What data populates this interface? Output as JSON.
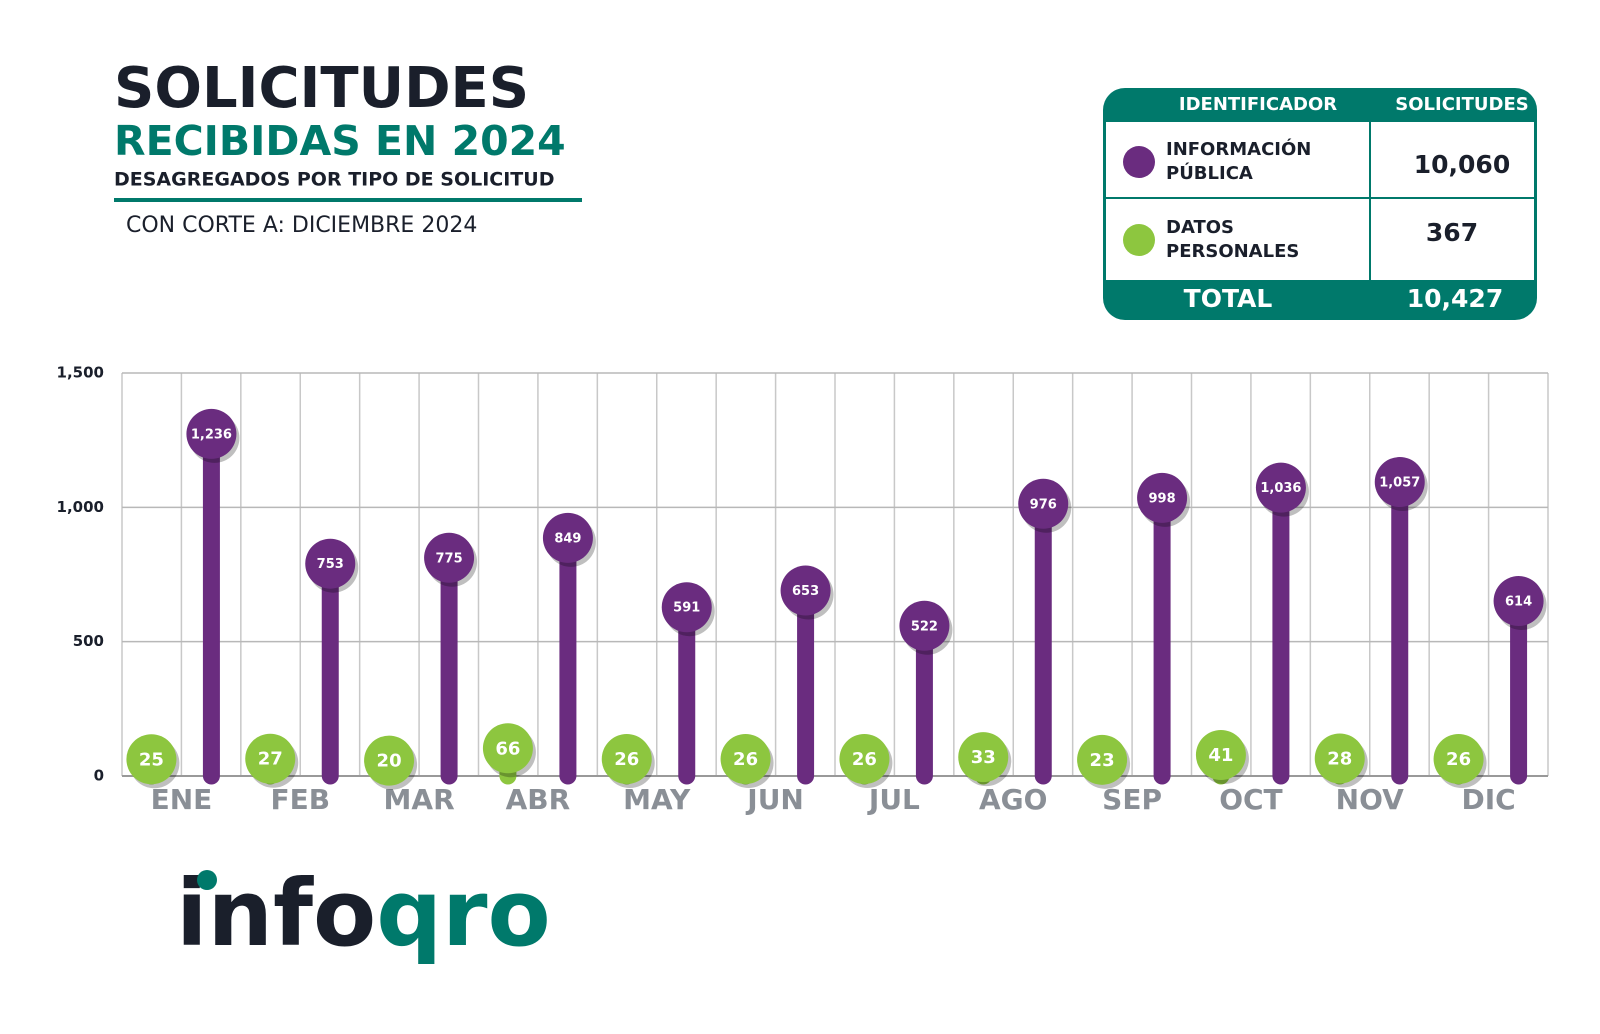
{
  "header": {
    "title": "SOLICITUDES",
    "subtitle": "RECIBIDAS EN 2024",
    "description": "DESAGREGADOS POR TIPO DE SOLICITUD",
    "cutoff": "CON CORTE A: DICIEMBRE 2024"
  },
  "table": {
    "headers": [
      "IDENTIFICADOR",
      "SOLICITUDES"
    ],
    "rows": [
      "10,060",
      "367"
    ],
    "total_label": "TOTAL",
    "total": "10,427"
  },
  "logo": {
    "left": "info",
    "right": "qro"
  },
  "chart_data": {
    "type": "lollipop",
    "categories": [
      "ENE",
      "FEB",
      "MAR",
      "ABR",
      "MAY",
      "JUN",
      "JUL",
      "AGO",
      "SEP",
      "OCT",
      "NOV",
      "DIC"
    ],
    "series": [
      {
        "name": "DATOS PERSONALES",
        "color": "#8dc63f",
        "values": [
          25,
          27,
          20,
          66,
          26,
          26,
          26,
          33,
          23,
          41,
          28,
          26
        ]
      },
      {
        "name": "INFORMACIÓN PÚBLICA",
        "color": "#6a2c7f",
        "values": [
          1236,
          753,
          775,
          849,
          591,
          653,
          522,
          976,
          998,
          1036,
          1057,
          614
        ],
        "value_labels": [
          "1,236",
          "753",
          "775",
          "849",
          "591",
          "653",
          "522",
          "976",
          "998",
          "1,036",
          "1,057",
          "614"
        ]
      }
    ],
    "ylim": [
      0,
      1500
    ],
    "yticks": [
      0,
      500,
      {
        "value": 1000,
        "label": "1,000"
      },
      {
        "value": 1500,
        "label": "1,500"
      }
    ],
    "grid": true
  }
}
